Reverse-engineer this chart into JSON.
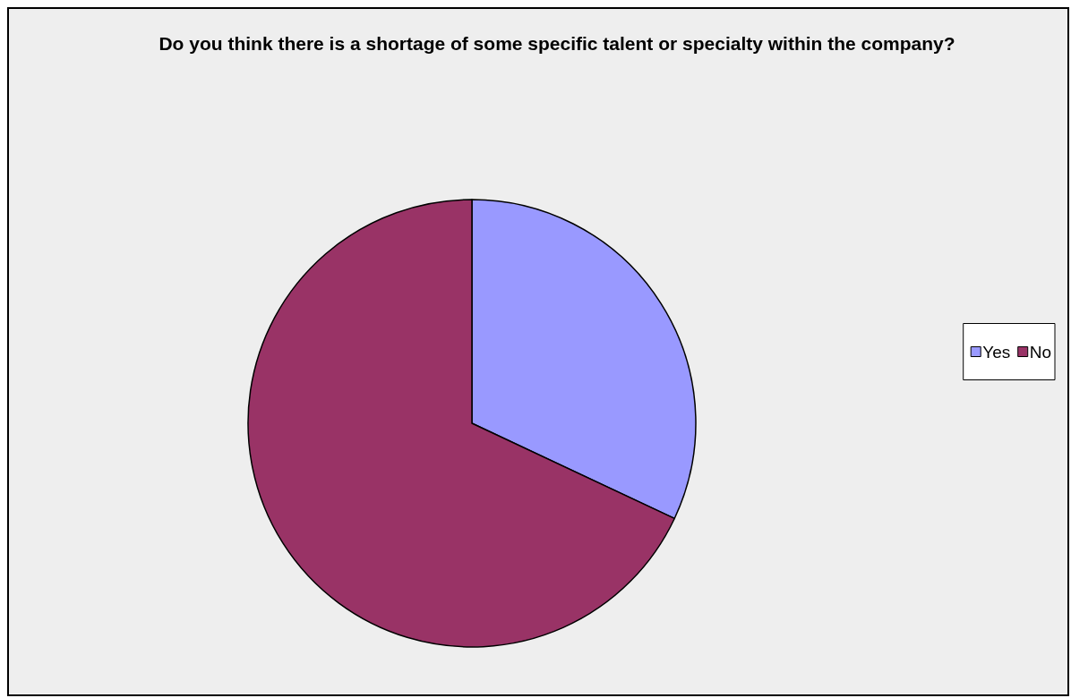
{
  "chart_data": {
    "type": "pie",
    "title": "Do you think there is a shortage of some specific talent or specialty within the company?",
    "categories": [
      "Yes",
      "No"
    ],
    "values": [
      32,
      68
    ],
    "colors": [
      "#9999ff",
      "#993366"
    ],
    "legend": "right"
  }
}
